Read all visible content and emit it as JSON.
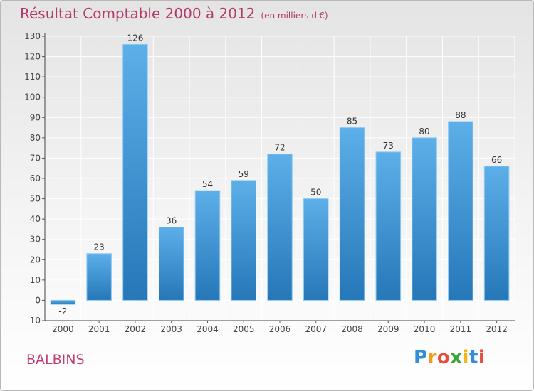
{
  "title": "Résultat Comptable 2000 à 2012",
  "subtitle": "(en milliers d'€)",
  "place": "BALBINS",
  "logo": {
    "letters": [
      "P",
      "r",
      "o",
      "x",
      "i",
      "t",
      "i"
    ],
    "colors": [
      "#2f8fd8",
      "#f39b1b",
      "#e74c3c",
      "#3aa63a",
      "#f2b81a",
      "#2f8fd8",
      "#e74c3c"
    ]
  },
  "colors": {
    "bar_top": "#5dafe9",
    "bar_bottom": "#2677b8",
    "title": "#b5386a",
    "grid": "#ffffff"
  },
  "chart_data": {
    "type": "bar",
    "title": "Résultat Comptable 2000 à 2012",
    "subtitle": "(en milliers d'€)",
    "xlabel": "",
    "ylabel": "",
    "categories": [
      "2000",
      "2001",
      "2002",
      "2003",
      "2004",
      "2005",
      "2006",
      "2007",
      "2008",
      "2009",
      "2010",
      "2011",
      "2012"
    ],
    "values": [
      -2,
      23,
      126,
      36,
      54,
      59,
      72,
      50,
      85,
      73,
      80,
      88,
      66
    ],
    "value_labels": [
      "-2",
      "23",
      "126",
      "36",
      "54",
      "59",
      "72",
      "50",
      "85",
      "73",
      "80",
      "88",
      "66"
    ],
    "ylim": [
      -10,
      130
    ],
    "yticks": [
      -10,
      0,
      10,
      20,
      30,
      40,
      50,
      60,
      70,
      80,
      90,
      100,
      110,
      120,
      130
    ],
    "grid": true
  }
}
